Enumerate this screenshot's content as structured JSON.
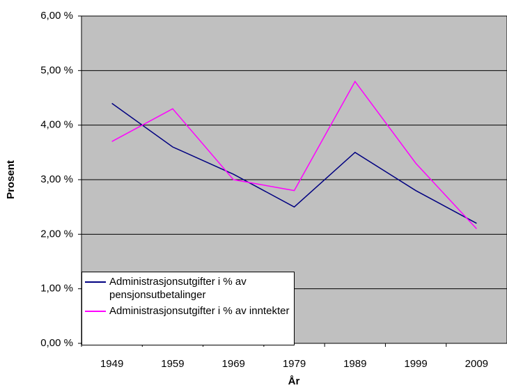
{
  "chart_data": {
    "type": "line",
    "x_label": "År",
    "y_label": "Prosent",
    "categories": [
      "1949",
      "1959",
      "1969",
      "1979",
      "1989",
      "1999",
      "2009"
    ],
    "series": [
      {
        "name": "Administrasjonsutgifter i % av pensjonsutbetalinger",
        "color": "#000080",
        "values": [
          4.4,
          3.6,
          3.1,
          2.5,
          3.5,
          2.8,
          2.2
        ]
      },
      {
        "name": "Administrasjonsutgifter i % av inntekter",
        "color": "#ff00ff",
        "values": [
          3.7,
          4.3,
          3.0,
          2.8,
          4.8,
          3.3,
          2.1
        ]
      }
    ],
    "ylim": [
      0,
      6
    ],
    "yticks": [
      {
        "value": 0,
        "label": "0,00 %"
      },
      {
        "value": 1,
        "label": "1,00 %"
      },
      {
        "value": 2,
        "label": "2,00 %"
      },
      {
        "value": 3,
        "label": "3,00 %"
      },
      {
        "value": 4,
        "label": "4,00 %"
      },
      {
        "value": 5,
        "label": "5,00 %"
      },
      {
        "value": 6,
        "label": "6,00 %"
      }
    ],
    "grid": true,
    "legend": "bottom-left",
    "plot_background": "#c0c0c0"
  }
}
